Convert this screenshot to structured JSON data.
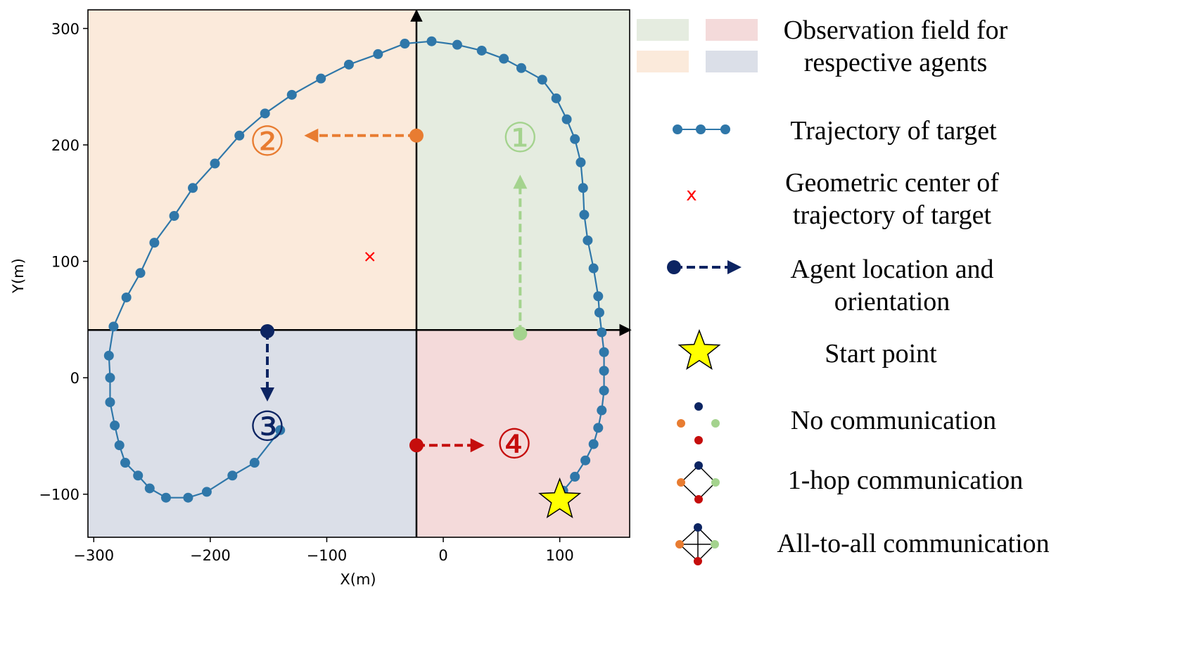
{
  "colors": {
    "trajectory": "#2f77a9",
    "field_agent1": "#e5ece0",
    "field_agent2": "#fbeadb",
    "field_agent3": "#dbdfe8",
    "field_agent4": "#f4dada",
    "agent1": "#a4d38e",
    "agent2": "#e87c31",
    "agent3": "#0c2462",
    "agent4": "#c50d0c",
    "center": "#ff0000",
    "star": "#ffff00"
  },
  "chart_data": {
    "type": "scatter",
    "title": "",
    "xlabel": "X(m)",
    "ylabel": "Y(m)",
    "xlim": [
      -305,
      160
    ],
    "ylim": [
      -137,
      316
    ],
    "xticks": [
      -300,
      -200,
      -100,
      0,
      100
    ],
    "yticks": [
      -100,
      0,
      100,
      200,
      300
    ],
    "xtick_labels": [
      "−300",
      "−200",
      "−100",
      "0",
      "100"
    ],
    "ytick_labels": [
      "−100",
      "0",
      "100",
      "200",
      "300"
    ],
    "grid": false,
    "divider": {
      "x": -23,
      "y": 41
    },
    "start_point": {
      "x": 100,
      "y": -105
    },
    "trajectory_center": {
      "x": -63,
      "y": 104
    },
    "series": [
      {
        "x": [
          103,
          113,
          122,
          129,
          133,
          136,
          138,
          138,
          138,
          136,
          134,
          133,
          129,
          124,
          121,
          120,
          118,
          113,
          106,
          97,
          85,
          67,
          52,
          33,
          12,
          -10,
          -33,
          -56,
          -81,
          -105,
          -130,
          -153,
          -175,
          -196,
          -215,
          -231,
          -248,
          -260,
          -272,
          -283,
          -287,
          -286,
          -286,
          -282,
          -278,
          -273,
          -262,
          -252,
          -238,
          -219,
          -203,
          -181,
          -162,
          -140
        ],
        "y": [
          -97,
          -85,
          -71,
          -57,
          -43,
          -28,
          -11,
          6,
          22,
          39,
          56,
          70,
          94,
          118,
          140,
          163,
          185,
          205,
          222,
          240,
          256,
          266,
          274,
          281,
          286,
          289,
          287,
          278,
          269,
          257,
          243,
          227,
          208,
          184,
          163,
          139,
          116,
          90,
          69,
          44,
          19,
          0,
          -21,
          -41,
          -58,
          -73,
          -84,
          -95,
          -103,
          -103,
          -98,
          -84,
          -73,
          -45
        ]
      }
    ],
    "agents": [
      {
        "label": "①",
        "x": 66,
        "y": 38,
        "to_y": 172
      },
      {
        "label": "②",
        "x": -23,
        "y": 208,
        "to_x": -117
      },
      {
        "label": "③",
        "x": -151,
        "y": 40,
        "to_y": -18
      },
      {
        "label": "④",
        "x": -23,
        "y": -58,
        "to_x": 33
      }
    ],
    "agent_labels": [
      {
        "text": "①",
        "x": 66,
        "y": 206
      },
      {
        "text": "②",
        "x": -151,
        "y": 203
      },
      {
        "text": "③",
        "x": -151,
        "y": -42
      },
      {
        "text": "④",
        "x": 61,
        "y": -57
      }
    ]
  },
  "legend": {
    "observation_line1": "Observation field for",
    "observation_line2": "respective agents",
    "trajectory": "Trajectory of target",
    "center_line1": "Geometric center of",
    "center_line2": "trajectory of target",
    "center_marker": "x",
    "agent_line1": "Agent location and",
    "agent_line2": "orientation",
    "start": "Start point",
    "no_comm": "No communication",
    "one_hop": "1-hop communication",
    "all_to_all": "All-to-all communication"
  }
}
